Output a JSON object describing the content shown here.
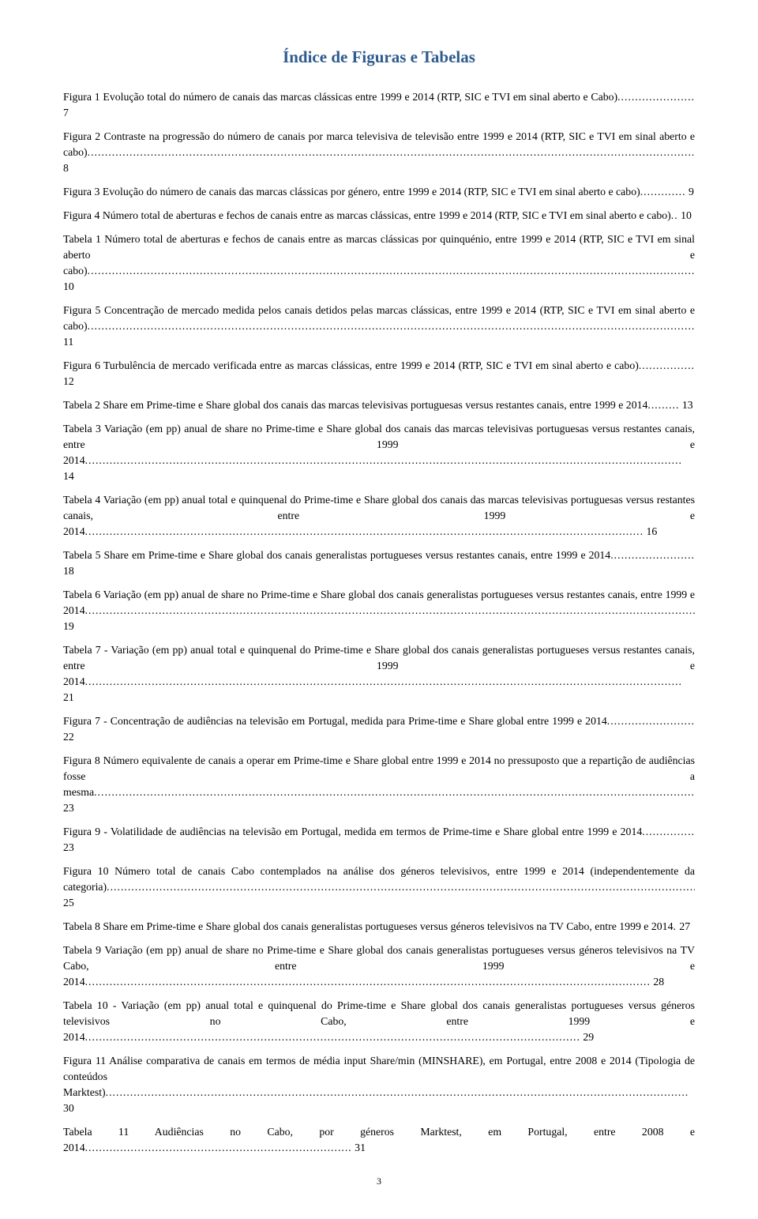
{
  "title": "Índice de Figuras e Tabelas",
  "title_color": "#2e5b8f",
  "page_number": "3",
  "entries": [
    {
      "text": "Figura 1 Evolução total do número de canais das marcas clássicas entre 1999 e 2014 (RTP, SIC e TVI em sinal aberto e Cabo)",
      "page": "7"
    },
    {
      "text": "Figura 2 Contraste na progressão do número de canais por marca televisiva de televisão entre 1999 e 2014 (RTP, SIC e TVI em sinal aberto e cabo)",
      "page": "8"
    },
    {
      "text": "Figura 3 Evolução do número de canais das marcas clássicas por género, entre 1999 e 2014 (RTP, SIC e TVI em sinal aberto e cabo)",
      "page": "9"
    },
    {
      "text": "Figura 4 Número total de aberturas e fechos de canais entre as marcas clássicas, entre 1999 e 2014 (RTP, SIC e TVI em sinal aberto e cabo)",
      "page": "10"
    },
    {
      "text": "Tabela 1 Número total de aberturas e fechos de canais entre as marcas clássicas por quinquénio, entre 1999 e 2014 (RTP, SIC e TVI em sinal aberto e cabo)",
      "page": "10"
    },
    {
      "text": "Figura 5 Concentração de mercado medida pelos canais detidos pelas marcas clássicas, entre 1999 e 2014 (RTP, SIC e TVI em sinal aberto e cabo)",
      "page": "11"
    },
    {
      "text": "Figura 6 Turbulência de mercado verificada entre as marcas clássicas, entre 1999 e 2014 (RTP, SIC e TVI em sinal aberto e cabo)",
      "page": "12"
    },
    {
      "text": "Tabela 2 Share em Prime-time e Share global dos canais das marcas televisivas portuguesas versus restantes canais, entre 1999 e 2014",
      "page": "13"
    },
    {
      "text": "Tabela 3 Variação (em pp) anual de share no Prime-time e Share global dos canais das marcas televisivas portuguesas versus restantes canais, entre 1999 e 2014",
      "page": "14"
    },
    {
      "text": "Tabela 4 Variação (em pp) anual total e quinquenal do Prime-time e Share global dos canais das marcas televisivas portuguesas versus restantes canais, entre 1999 e 2014",
      "page": "16"
    },
    {
      "text": "Tabela 5 Share em Prime-time e Share global dos canais generalistas portugueses versus restantes canais, entre 1999 e 2014",
      "page": "18"
    },
    {
      "text": "Tabela 6 Variação (em pp) anual de share no Prime-time e Share global dos canais generalistas portugueses versus restantes canais, entre 1999 e 2014",
      "page": "19"
    },
    {
      "text": "Tabela 7 - Variação (em pp) anual total e quinquenal do Prime-time e Share global dos canais generalistas portugueses versus restantes canais, entre 1999 e 2014",
      "page": "21"
    },
    {
      "text": "Figura 7 - Concentração de audiências na televisão em Portugal, medida para Prime-time e Share global entre 1999 e 2014",
      "page": "22"
    },
    {
      "text": "Figura 8 Número equivalente de canais a operar em Prime-time e Share global entre 1999 e 2014 no pressuposto que a repartição de audiências fosse a mesma",
      "page": "23"
    },
    {
      "text": "Figura 9 - Volatilidade de audiências na televisão em Portugal, medida em termos de Prime-time e Share global entre 1999 e 2014",
      "page": "23"
    },
    {
      "text": "Figura 10 Número total de canais Cabo contemplados na análise dos géneros televisivos, entre 1999 e 2014 (independentemente da categoria)",
      "page": "25"
    },
    {
      "text": "Tabela 8 Share em Prime-time e Share global dos canais generalistas portugueses versus géneros televisivos na TV Cabo, entre 1999 e 2014",
      "page": "27"
    },
    {
      "text": "Tabela 9 Variação (em pp) anual de share no Prime-time e Share global dos canais generalistas portugueses versus géneros televisivos na TV Cabo, entre 1999 e 2014",
      "page": "28"
    },
    {
      "text": "Tabela 10 - Variação (em pp) anual total e quinquenal do Prime-time e Share global dos canais generalistas portugueses versus géneros televisivos no Cabo, entre 1999 e 2014",
      "page": "29"
    },
    {
      "text": "Figura 11 Análise comparativa de canais em termos de média input Share/min (MINSHARE), em Portugal, entre 2008 e 2014 (Tipologia de conteúdos Marktest)",
      "page": "30"
    },
    {
      "text": "Tabela 11 Audiências no Cabo, por géneros Marktest, em Portugal, entre 2008 e 2014",
      "page": "31"
    }
  ]
}
